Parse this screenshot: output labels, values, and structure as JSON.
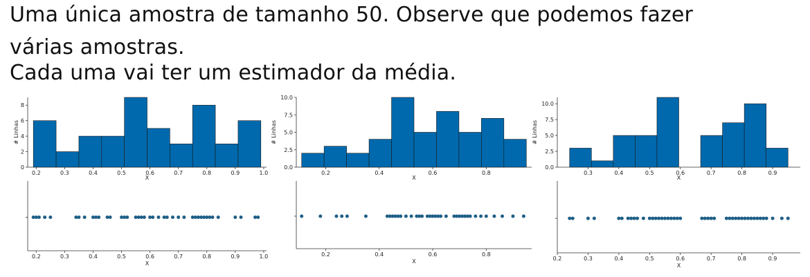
{
  "slide": {
    "title_lines": [
      "Uma única amostra de tamanho 50. Observe que podemos fazer",
      "várias amostras.",
      "Cada uma vai ter um estimador da média."
    ]
  },
  "chart_data": [
    {
      "type": "bar",
      "kind": "histogram",
      "xlabel": "X",
      "ylabel": "# Linhas",
      "bin_edges": [
        0.19,
        0.27,
        0.35,
        0.43,
        0.51,
        0.59,
        0.67,
        0.75,
        0.83,
        0.91,
        0.99
      ],
      "values": [
        6,
        2,
        4,
        4,
        9,
        5,
        3,
        8,
        3,
        6
      ],
      "xlim": [
        0.17,
        1.01
      ],
      "ylim": [
        0,
        9
      ],
      "xticks": [
        "0.2",
        "0.3",
        "0.4",
        "0.5",
        "0.6",
        "0.7",
        "0.8",
        "0.9",
        "1.0"
      ],
      "yticks": [
        "0",
        "2",
        "4",
        "6",
        "8"
      ],
      "bar_color": "#0069ad"
    },
    {
      "type": "scatter",
      "xlabel": "X",
      "x": [
        0.19,
        0.2,
        0.21,
        0.23,
        0.25,
        0.34,
        0.35,
        0.37,
        0.4,
        0.41,
        0.42,
        0.45,
        0.46,
        0.5,
        0.51,
        0.52,
        0.55,
        0.56,
        0.57,
        0.58,
        0.6,
        0.61,
        0.63,
        0.65,
        0.66,
        0.68,
        0.7,
        0.72,
        0.75,
        0.76,
        0.77,
        0.78,
        0.79,
        0.8,
        0.81,
        0.82,
        0.84,
        0.9,
        0.92,
        0.97,
        0.98
      ],
      "xlim": [
        0.17,
        1.01
      ],
      "xticks": [
        "0.2",
        "0.3",
        "0.4",
        "0.5",
        "0.6",
        "0.7",
        "0.8",
        "0.9",
        "1.0"
      ],
      "point_color": "#1f5f86"
    },
    {
      "type": "bar",
      "kind": "histogram",
      "xlabel": "X",
      "ylabel": "# Linhas",
      "bin_edges": [
        0.11,
        0.194,
        0.278,
        0.362,
        0.446,
        0.53,
        0.614,
        0.698,
        0.782,
        0.866,
        0.95
      ],
      "values": [
        2,
        3,
        2,
        4,
        10,
        5,
        8,
        5,
        7,
        4
      ],
      "xlim": [
        0.09,
        0.97
      ],
      "ylim": [
        0,
        10
      ],
      "xticks": [
        "0.2",
        "0.4",
        "0.6",
        "0.8"
      ],
      "yticks": [
        "0.0",
        "2.5",
        "5.0",
        "7.5",
        "10.0"
      ],
      "bar_color": "#0069ad"
    },
    {
      "type": "scatter",
      "xlabel": "X",
      "x": [
        0.11,
        0.18,
        0.24,
        0.26,
        0.28,
        0.35,
        0.43,
        0.44,
        0.45,
        0.46,
        0.47,
        0.48,
        0.5,
        0.52,
        0.54,
        0.55,
        0.56,
        0.58,
        0.59,
        0.6,
        0.61,
        0.62,
        0.63,
        0.65,
        0.68,
        0.69,
        0.7,
        0.71,
        0.72,
        0.73,
        0.74,
        0.76,
        0.78,
        0.8,
        0.83,
        0.86,
        0.9,
        0.94
      ],
      "xlim": [
        0.09,
        0.97
      ],
      "xticks": [
        "0.2",
        "0.4",
        "0.6",
        "0.8"
      ],
      "point_color": "#1f5f86"
    },
    {
      "type": "bar",
      "kind": "histogram",
      "xlabel": "X",
      "ylabel": "# Linhas",
      "bin_edges": [
        0.24,
        0.311,
        0.382,
        0.453,
        0.524,
        0.595,
        0.666,
        0.737,
        0.808,
        0.879,
        0.95
      ],
      "values": [
        3,
        1,
        5,
        5,
        11,
        0,
        5,
        7,
        10,
        3
      ],
      "xlim": [
        0.2,
        0.99
      ],
      "ylim": [
        0,
        11
      ],
      "xticks": [
        "0.3",
        "0.4",
        "0.5",
        "0.6",
        "0.7",
        "0.8",
        "0.9"
      ],
      "yticks": [
        "0.0",
        "2.5",
        "5.0",
        "7.5",
        "10.0"
      ],
      "bar_color": "#0069ad"
    },
    {
      "type": "scatter",
      "xlabel": "X",
      "x": [
        0.24,
        0.25,
        0.3,
        0.32,
        0.4,
        0.41,
        0.43,
        0.44,
        0.45,
        0.46,
        0.48,
        0.5,
        0.51,
        0.52,
        0.53,
        0.54,
        0.55,
        0.56,
        0.57,
        0.58,
        0.59,
        0.6,
        0.67,
        0.68,
        0.69,
        0.7,
        0.71,
        0.75,
        0.76,
        0.77,
        0.78,
        0.79,
        0.8,
        0.81,
        0.82,
        0.83,
        0.84,
        0.85,
        0.86,
        0.87,
        0.88,
        0.9,
        0.93,
        0.95
      ],
      "xlim": [
        0.2,
        0.99
      ],
      "xticks": [
        "0.2",
        "0.3",
        "0.4",
        "0.5",
        "0.6",
        "0.7",
        "0.8",
        "0.9"
      ],
      "point_color": "#1f5f86"
    }
  ]
}
